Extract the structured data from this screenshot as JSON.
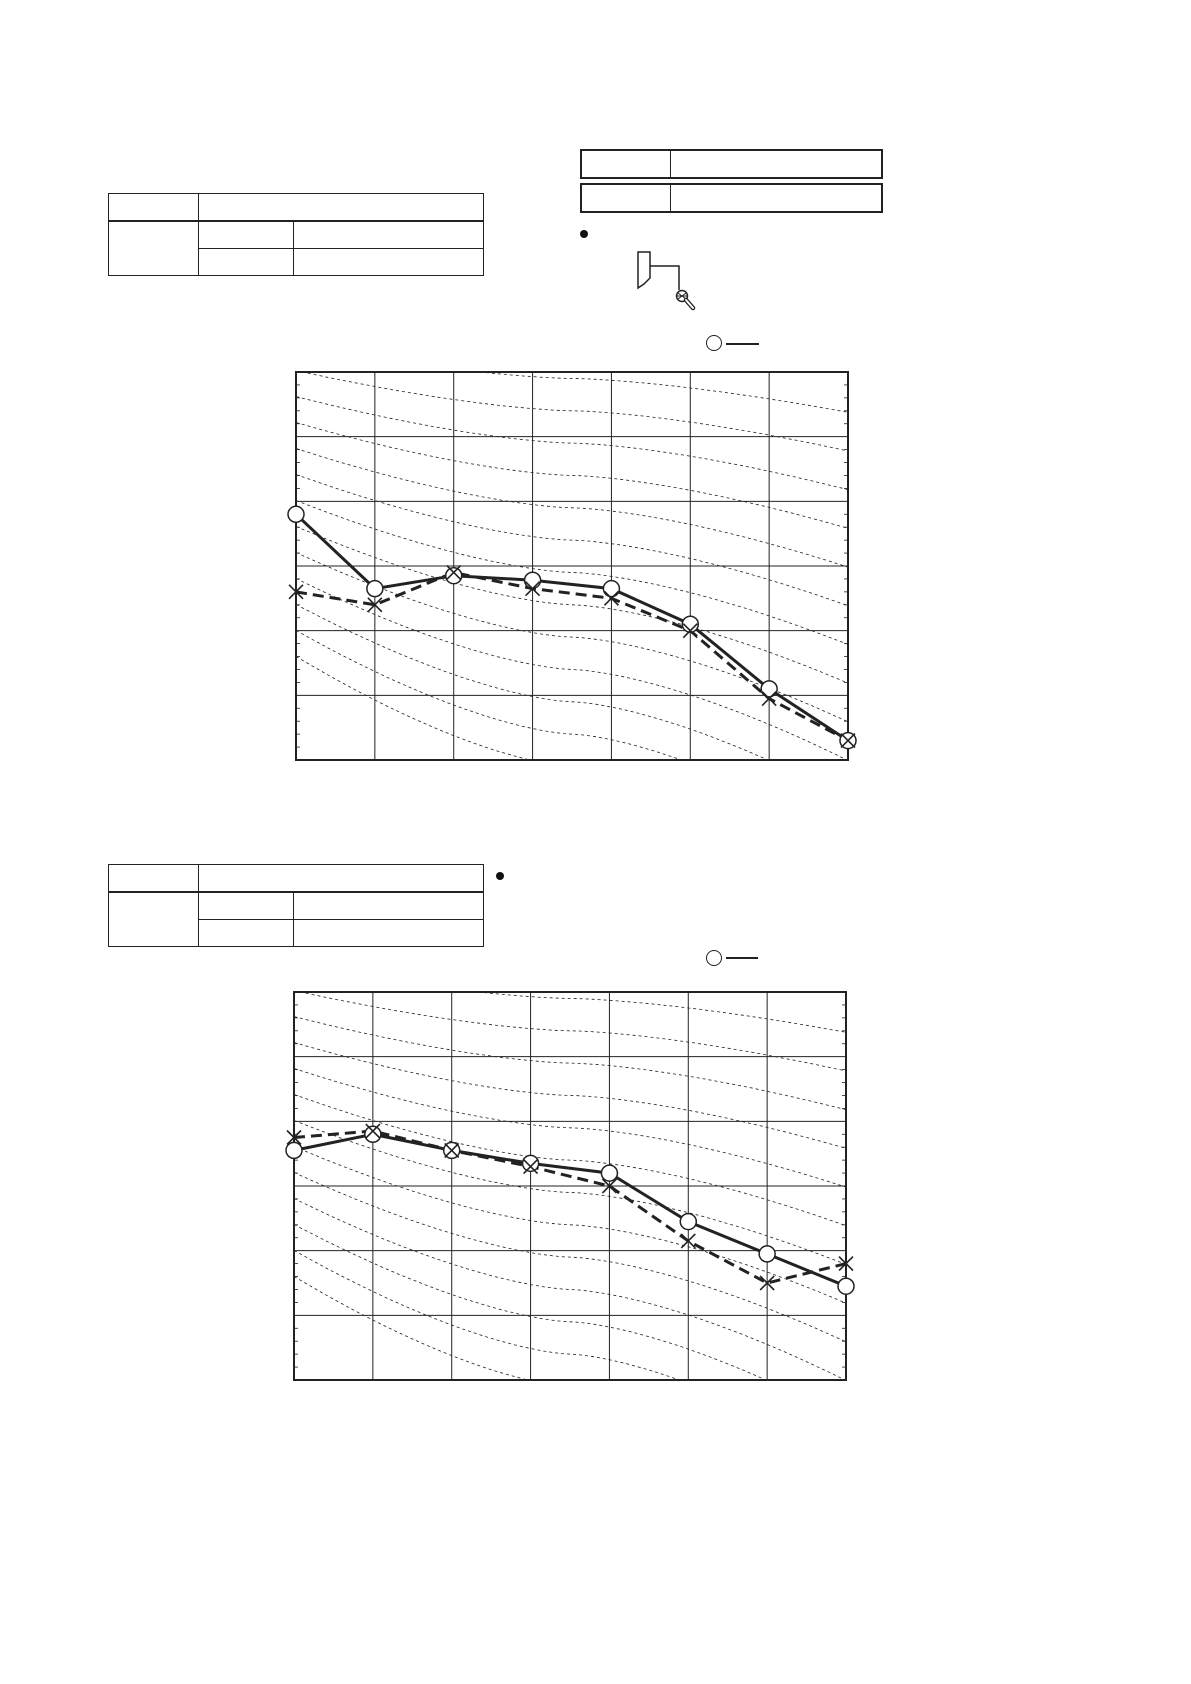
{
  "page": {
    "background": "#ffffff",
    "ink": "#222222"
  },
  "chart_data": [
    {
      "type": "line",
      "title": "",
      "xlabel": "",
      "ylabel": "",
      "xlim": [
        0,
        7
      ],
      "ylim": [
        0,
        60
      ],
      "grid": true,
      "nc_curves": [
        10,
        15,
        20,
        25,
        30,
        35,
        40,
        45,
        50,
        55,
        60,
        65,
        70
      ],
      "x": [
        0,
        1,
        2,
        3,
        4,
        5,
        6,
        7
      ],
      "series": [
        {
          "style": "solid",
          "marker": "circle",
          "values": [
            38,
            26.5,
            28.5,
            27.8,
            26.5,
            21,
            11,
            3
          ]
        },
        {
          "style": "dashed",
          "marker": "cross",
          "values": [
            26,
            24,
            29,
            26.5,
            25,
            20,
            9.5,
            3
          ]
        }
      ]
    },
    {
      "type": "line",
      "title": "",
      "xlabel": "",
      "ylabel": "",
      "xlim": [
        0,
        7
      ],
      "ylim": [
        0,
        60
      ],
      "grid": true,
      "nc_curves": [
        10,
        15,
        20,
        25,
        30,
        35,
        40,
        45,
        50,
        55,
        60,
        65,
        70
      ],
      "x": [
        0,
        1,
        2,
        3,
        4,
        5,
        6,
        7
      ],
      "series": [
        {
          "style": "solid",
          "marker": "circle",
          "values": [
            35.5,
            38,
            35.5,
            33.5,
            32,
            24.5,
            19.5,
            14.5
          ]
        },
        {
          "style": "dashed",
          "marker": "cross",
          "values": [
            37.5,
            38.5,
            35.5,
            33,
            30,
            21.5,
            15,
            18
          ]
        }
      ]
    }
  ]
}
